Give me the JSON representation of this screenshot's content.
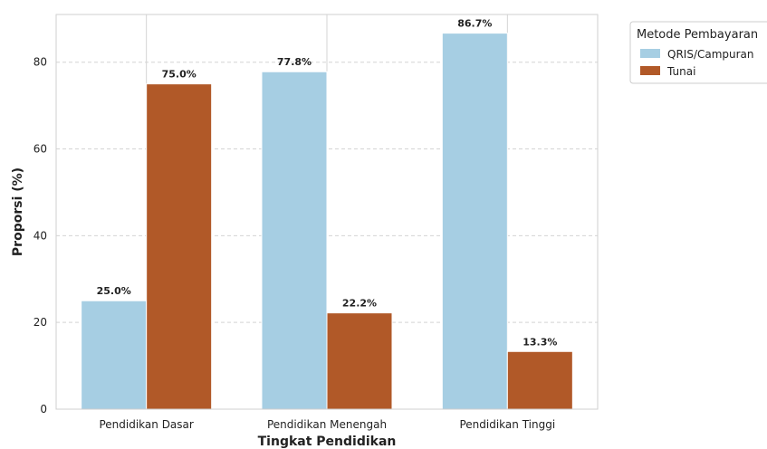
{
  "chart_data": {
    "type": "bar",
    "title": "",
    "xlabel": "Tingkat Pendidikan",
    "ylabel": "Proporsi (%)",
    "categories": [
      "Pendidikan Dasar",
      "Pendidikan Menengah",
      "Pendidikan Tinggi"
    ],
    "series": [
      {
        "name": "QRIS/Campuran",
        "color": "#a6cee3",
        "values": [
          25.0,
          77.8,
          86.7
        ],
        "labels": [
          "25.0%",
          "77.8%",
          "86.7%"
        ]
      },
      {
        "name": "Tunai",
        "color": "#b15928",
        "values": [
          75.0,
          22.2,
          13.3
        ],
        "labels": [
          "75.0%",
          "22.2%",
          "13.3%"
        ]
      }
    ],
    "yticks": [
      0,
      20,
      40,
      60,
      80
    ],
    "ylim": [
      0,
      91
    ],
    "grid": true,
    "legend": {
      "title": "Metode Pembayaran",
      "placement": "outside-top-right"
    }
  }
}
